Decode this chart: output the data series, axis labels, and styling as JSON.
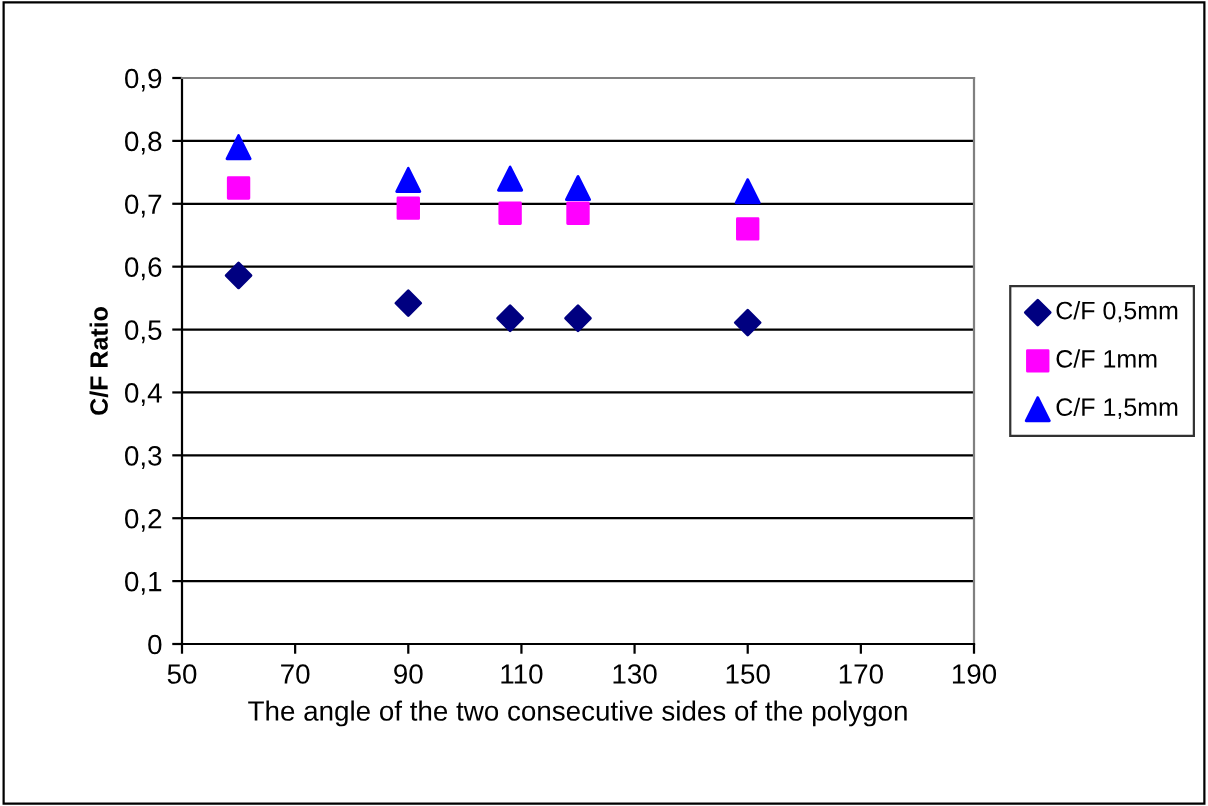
{
  "chart_data": {
    "type": "scatter",
    "xlabel": "The angle of the two consecutive sides of the polygon",
    "ylabel": "C/F Ratio",
    "x": [
      60,
      90,
      108,
      120,
      150
    ],
    "series": [
      {
        "name": "C/F 0,5mm",
        "color": "#000080",
        "marker": "diamond",
        "values": [
          0.586,
          0.542,
          0.518,
          0.518,
          0.511
        ]
      },
      {
        "name": "C/F 1mm",
        "color": "#ff00ff",
        "marker": "square",
        "values": [
          0.725,
          0.693,
          0.685,
          0.685,
          0.66
        ]
      },
      {
        "name": "C/F 1,5mm",
        "color": "#0000ff",
        "marker": "triangle",
        "values": [
          0.79,
          0.738,
          0.74,
          0.725,
          0.72
        ]
      }
    ],
    "xlim": [
      50,
      190
    ],
    "xticks": [
      50,
      70,
      90,
      110,
      130,
      150,
      170,
      190
    ],
    "ylim": [
      0,
      0.9
    ],
    "yticks": [
      0,
      {
        "value": 0.1,
        "label": "0,1"
      },
      {
        "value": 0.2,
        "label": "0,2"
      },
      {
        "value": 0.3,
        "label": "0,3"
      },
      {
        "value": 0.4,
        "label": "0,4"
      },
      {
        "value": 0.5,
        "label": "0,5"
      },
      {
        "value": 0.6,
        "label": "0,6"
      },
      {
        "value": 0.7,
        "label": "0,7"
      },
      {
        "value": 0.8,
        "label": "0,8"
      },
      {
        "value": 0.9,
        "label": "0,9"
      }
    ],
    "grid": "y",
    "legend": "right"
  }
}
